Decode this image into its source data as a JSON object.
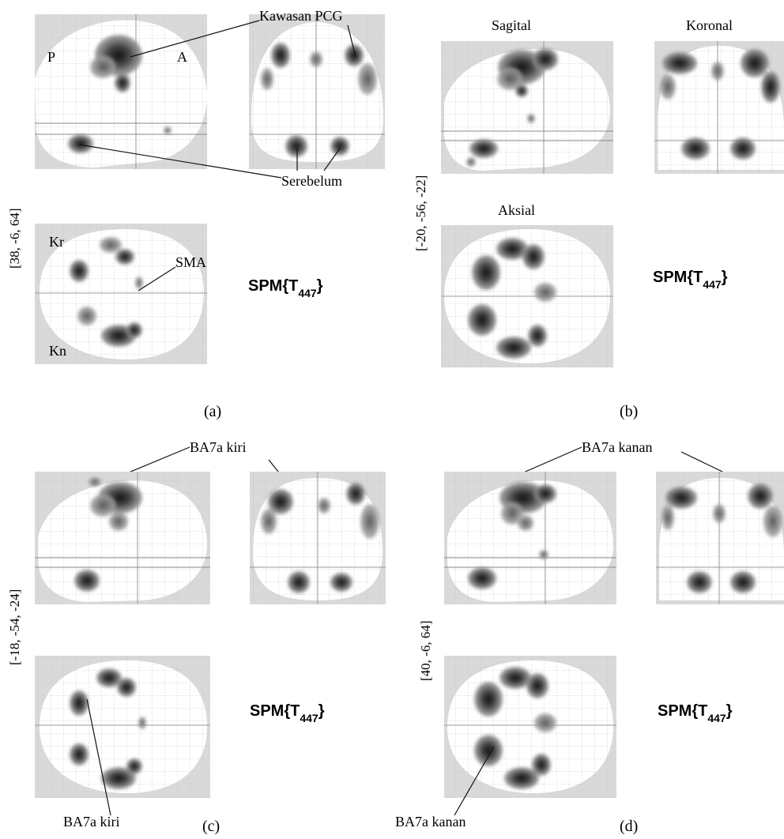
{
  "figure": {
    "labels": {
      "kawasan_pcg": "Kawasan PCG",
      "serebelum": "Serebelum",
      "sma": "SMA",
      "p": "P",
      "a": "A",
      "kr": "Kr",
      "kn": "Kn",
      "sagital": "Sagital",
      "koronal": "Koronal",
      "aksial": "Aksial",
      "ba7a_kiri": "BA7a kiri",
      "ba7a_kanan": "BA7a kanan"
    },
    "spm": {
      "prefix": "SPM{T",
      "subscript": "447",
      "suffix": "}"
    },
    "panels": [
      {
        "id": "a",
        "caption": "(a)",
        "coords": "[38, -6, 64]"
      },
      {
        "id": "b",
        "caption": "(b)",
        "coords": "[-20, -56, -22]"
      },
      {
        "id": "c",
        "caption": "(c)",
        "coords": "[-18, -54, -24]"
      },
      {
        "id": "d",
        "caption": "(d)",
        "coords": "[40, -6, 64]"
      }
    ],
    "colors": {
      "background": "#ffffff",
      "glass_fill": "#d9d9d9",
      "brain_fill": "#ffffff",
      "grid": "#bdbdbd",
      "blob_dark": "#1a1a1a",
      "blob_light": "#9a9a9a",
      "text": "#111111"
    }
  }
}
